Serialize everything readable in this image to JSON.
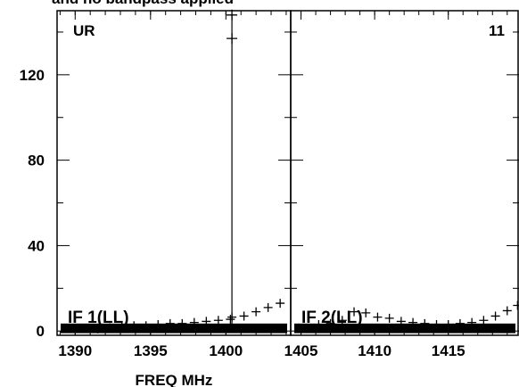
{
  "header": {
    "text": "and no bandpass applied"
  },
  "chart_data": [
    {
      "type": "scatter",
      "panel_label": "UR",
      "if_label": "IF 1(LL)",
      "xlabel": "FREQ MHz",
      "xlim": [
        1388.8,
        1404.3
      ],
      "ylim": [
        -2,
        150
      ],
      "x_ticks": [
        1390,
        1395,
        1400
      ],
      "y_ticks": [
        0,
        40,
        80,
        120
      ],
      "spike": {
        "x": 1400.4,
        "y_low": 0,
        "y_high": 148,
        "markers": [
          137,
          148
        ]
      },
      "points": [
        [
          1391.5,
          1.0
        ],
        [
          1392.3,
          1.5
        ],
        [
          1393.1,
          2.0
        ],
        [
          1393.9,
          2.5
        ],
        [
          1394.7,
          2.5
        ],
        [
          1395.5,
          3.0
        ],
        [
          1396.3,
          3.5
        ],
        [
          1397.1,
          3.5
        ],
        [
          1397.9,
          4.0
        ],
        [
          1398.7,
          4.5
        ],
        [
          1399.5,
          5.0
        ],
        [
          1400.3,
          5.5
        ],
        [
          1400.4,
          6.5
        ],
        [
          1401.2,
          7.0
        ],
        [
          1402.0,
          9.0
        ],
        [
          1402.8,
          11.0
        ],
        [
          1403.6,
          13.0
        ]
      ]
    },
    {
      "type": "scatter",
      "panel_label": "11",
      "if_label": "IF 2(LL)",
      "xlim": [
        1404.3,
        1419.8
      ],
      "ylim": [
        -2,
        150
      ],
      "x_ticks": [
        1405,
        1410,
        1415
      ],
      "points": [
        [
          1406.2,
          3.0
        ],
        [
          1407.0,
          3.5
        ],
        [
          1407.8,
          5.0
        ],
        [
          1408.6,
          9.0
        ],
        [
          1409.4,
          8.5
        ],
        [
          1410.2,
          6.5
        ],
        [
          1411.0,
          6.0
        ],
        [
          1411.8,
          4.5
        ],
        [
          1412.6,
          4.0
        ],
        [
          1413.4,
          3.5
        ],
        [
          1414.2,
          3.0
        ],
        [
          1415.0,
          3.0
        ],
        [
          1415.8,
          3.5
        ],
        [
          1416.6,
          4.0
        ],
        [
          1417.4,
          5.0
        ],
        [
          1418.2,
          7.0
        ],
        [
          1419.0,
          9.5
        ],
        [
          1419.7,
          12.0
        ]
      ]
    }
  ]
}
